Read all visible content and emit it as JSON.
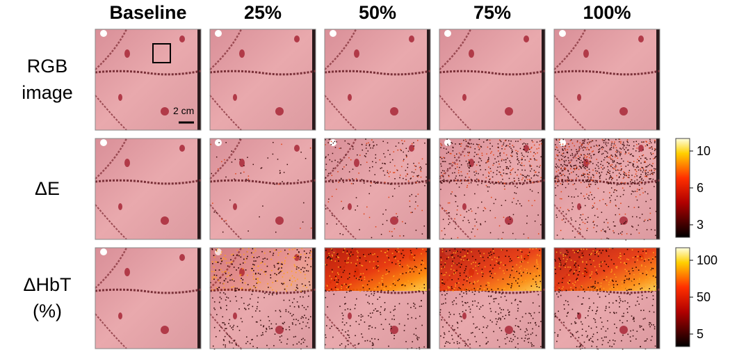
{
  "columns": [
    "Baseline",
    "25%",
    "50%",
    "75%",
    "100%"
  ],
  "rows": [
    {
      "label_lines": [
        "RGB",
        "image"
      ]
    },
    {
      "label_lines": [
        "ΔE"
      ]
    },
    {
      "label_lines": [
        "ΔHbT",
        "(%)"
      ]
    }
  ],
  "scale_bar": "2 cm",
  "colorbars": [
    {
      "ticks": [
        "10",
        "6",
        "3"
      ]
    },
    {
      "ticks": [
        "100",
        "50",
        "5"
      ]
    }
  ]
}
